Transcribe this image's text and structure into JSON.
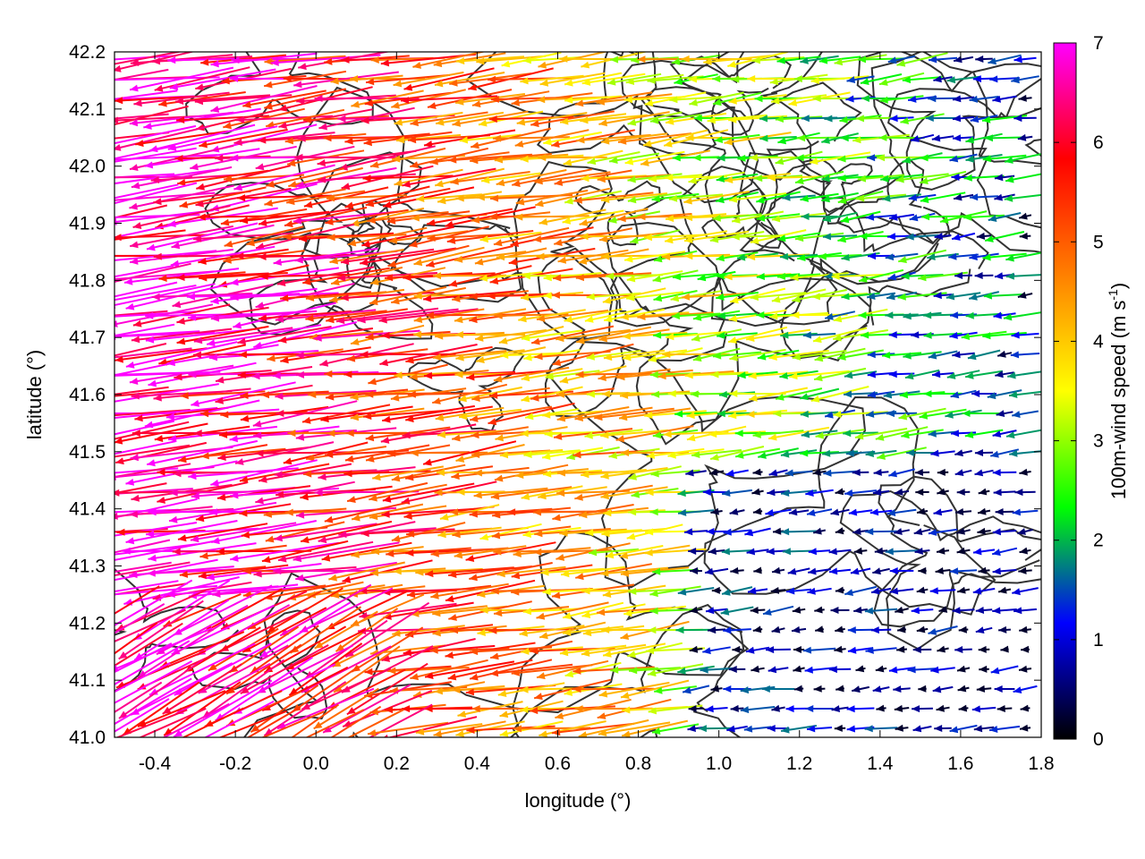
{
  "chart_data": {
    "type": "vector-field",
    "xlabel": "longitude (°)",
    "ylabel": "latitude (°)",
    "xlim": [
      -0.5,
      1.8
    ],
    "ylim": [
      41.0,
      42.2
    ],
    "xticks": [
      "-0.4",
      "-0.2",
      "0.0",
      "0.2",
      "0.4",
      "0.6",
      "0.8",
      "1.0",
      "1.2",
      "1.4",
      "1.6",
      "1.8"
    ],
    "xtick_values": [
      -0.4,
      -0.2,
      0.0,
      0.2,
      0.4,
      0.6,
      0.8,
      1.0,
      1.2,
      1.4,
      1.6,
      1.8
    ],
    "yticks": [
      "41.0",
      "41.1",
      "41.2",
      "41.3",
      "41.4",
      "41.5",
      "41.6",
      "41.7",
      "41.8",
      "41.9",
      "42.0",
      "42.1",
      "42.2"
    ],
    "ytick_values": [
      41.0,
      41.1,
      41.2,
      41.3,
      41.4,
      41.5,
      41.6,
      41.7,
      41.8,
      41.9,
      42.0,
      42.1,
      42.2
    ],
    "colorbar": {
      "label_main": "100m-wind speed (m s",
      "label_sup": "-1",
      "label_close": ")",
      "range": [
        0,
        7
      ],
      "ticks": [
        "0",
        "1",
        "2",
        "3",
        "4",
        "5",
        "6",
        "7"
      ],
      "tick_values": [
        0,
        1,
        2,
        3,
        4,
        5,
        6,
        7
      ],
      "palette": [
        "#000000",
        "#0000ff",
        "#00ff00",
        "#ffff00",
        "#ff8000",
        "#ff0000",
        "#ff00ff"
      ]
    },
    "wind_regime": {
      "description_free": true,
      "west_speed": 7,
      "east_speed": 0.8,
      "direction": "westward"
    },
    "grid": false,
    "contours": "topography isolines (dark grey)"
  }
}
